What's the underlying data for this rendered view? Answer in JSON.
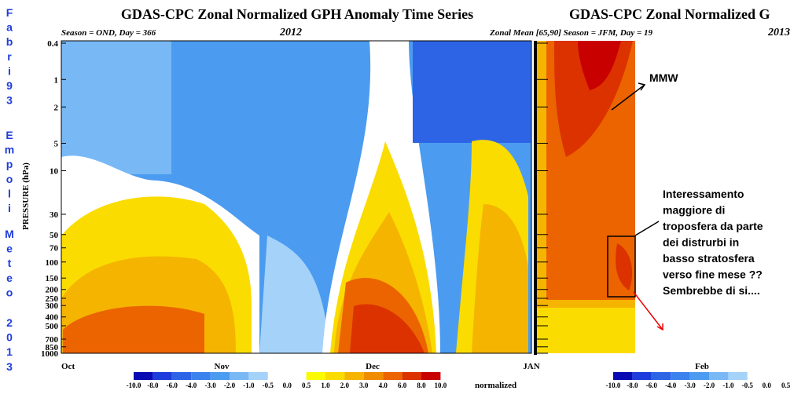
{
  "left_panel": {
    "title": "GDAS-CPC Zonal Normalized GPH Anomaly Time Series",
    "subtitle": "Season = OND, Day = 366",
    "year": "2012",
    "y_label": "PRESSURE (hPa)",
    "yticks": [
      "0.4",
      "1",
      "2",
      "5",
      "10",
      "30",
      "50",
      "70",
      "100",
      "150",
      "200",
      "250",
      "300",
      "400",
      "500",
      "700",
      "850",
      "1000"
    ],
    "months": [
      "Oct",
      "Nov",
      "Dec",
      "JAN"
    ],
    "colorbar": [
      "-10.0",
      "-8.0",
      "-6.0",
      "-4.0",
      "-3.0",
      "-2.0",
      "-1.0",
      "-0.5",
      "0.0",
      "0.5",
      "1.0",
      "2.0",
      "3.0",
      "4.0",
      "6.0",
      "8.0",
      "10.0"
    ],
    "colorbar_unit": "normalized"
  },
  "right_panel": {
    "title": "GDAS-CPC Zonal Normalized G",
    "subtitle": "Zonal Mean [65,90] Season = JFM, Day = 19",
    "year": "2013",
    "months": [
      "Feb"
    ],
    "colorbar": [
      "-10.0",
      "-8.0",
      "-6.0",
      "-4.0",
      "-3.0",
      "-2.0",
      "-1.0",
      "-0.5",
      "0.0",
      "0.5"
    ]
  },
  "annotations": {
    "mmw": "MMW",
    "note": [
      "Interessamento",
      "maggiore di",
      "troposfera da parte",
      "dei distrurbi in",
      "basso stratosfera",
      "verso fine mese ??",
      "Sembrebbe di si...."
    ]
  },
  "watermark": [
    "Fabri93",
    "Empoli",
    "Meteo",
    "2013"
  ]
}
